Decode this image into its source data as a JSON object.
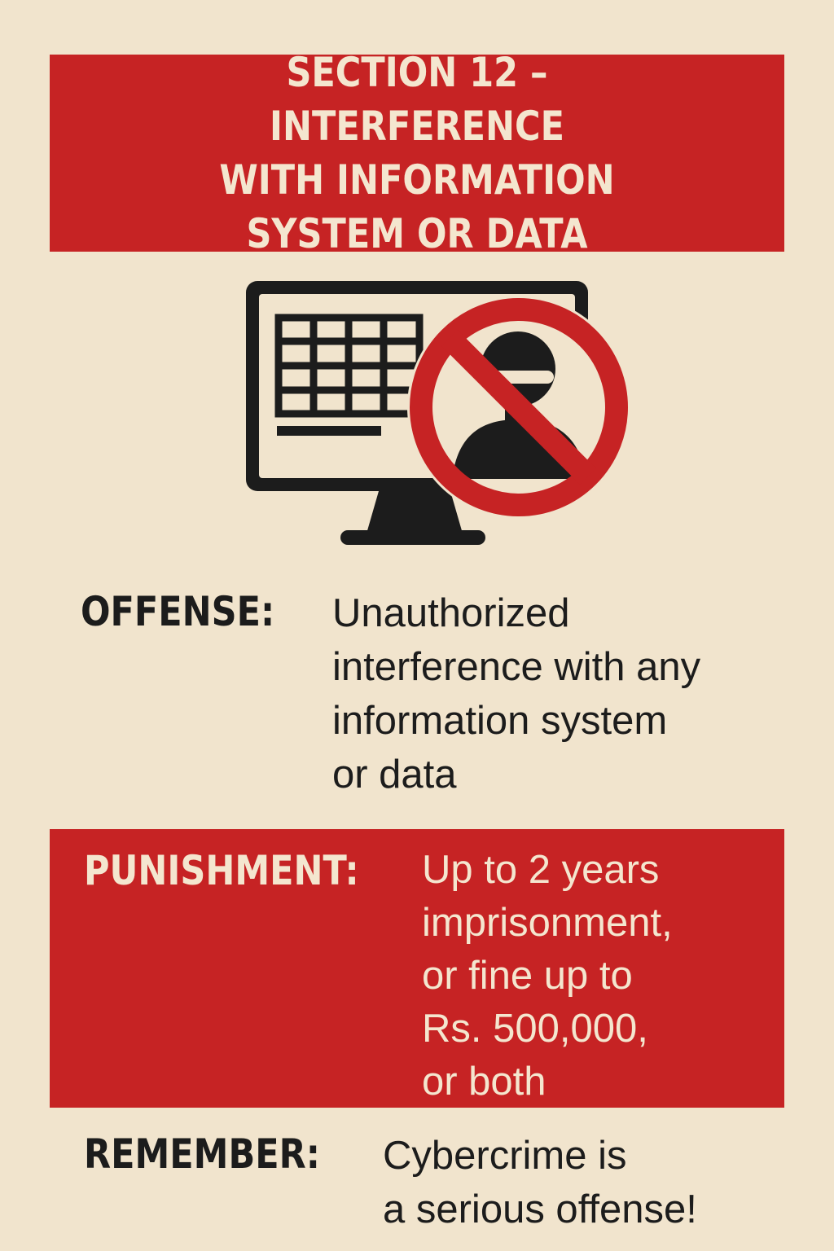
{
  "header": {
    "title": "SECTION 12 – INTERFERENCE\nWITH INFORMATION\nSYSTEM OR DATA"
  },
  "icon": {
    "name": "computer-with-prohibited-hacker-icon",
    "colors": {
      "monitor": "#1c1c1c",
      "prohibition": "#c62324"
    }
  },
  "offense": {
    "label": "OFFENSE:",
    "text": "Unauthorized\ninterference with any\ninformation system\nor data"
  },
  "punishment": {
    "label": "PUNISHMENT:",
    "text": "Up to 2 years\nimprisonment,\nor fine up to\nRs. 500,000,\nor both"
  },
  "remember": {
    "label": "REMEMBER:",
    "text": "Cybercrime is\na serious offense!"
  },
  "colors": {
    "background": "#f1e4cd",
    "accent_red": "#c62324",
    "text_dark": "#1c1c1c",
    "text_light": "#f4e6cf"
  }
}
